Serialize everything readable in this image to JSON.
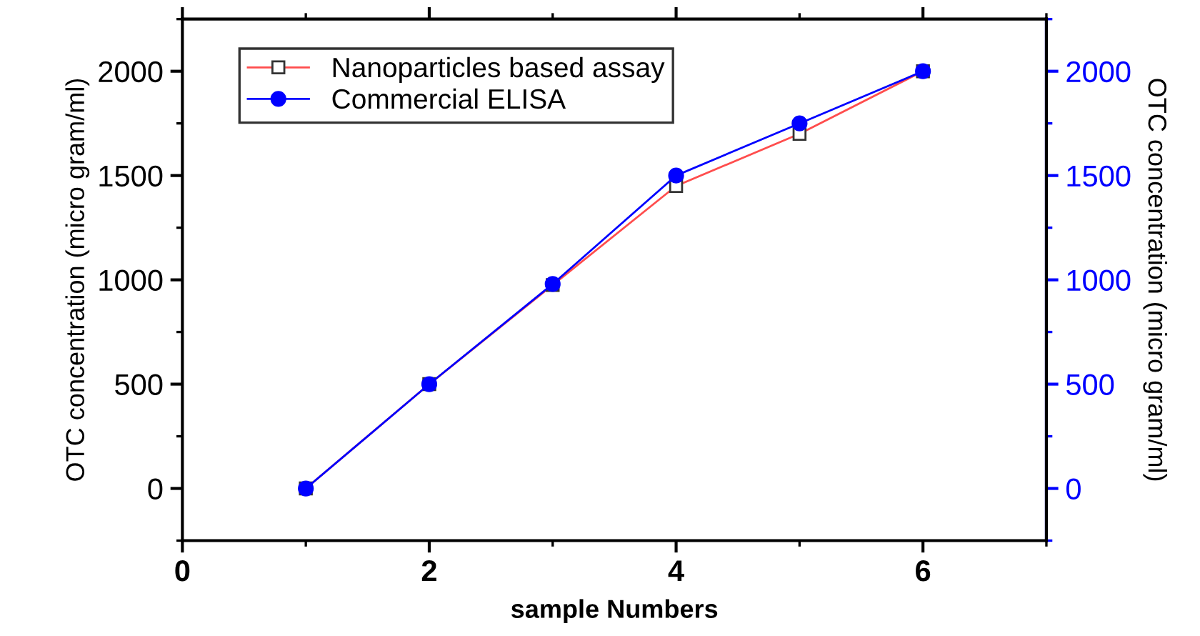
{
  "chart_data": {
    "type": "line",
    "xlabel": "sample Numbers",
    "ylabel": "OTC concentration (micro gram/ml)",
    "y2label": "OTC concentration (micro gram/ml)",
    "x": [
      1,
      2,
      3,
      4,
      5,
      6
    ],
    "series": [
      {
        "name": "Nanoparticles based assay",
        "color": "#ff4d4d",
        "marker": "square",
        "values": [
          0,
          500,
          975,
          1450,
          1700,
          2000
        ]
      },
      {
        "name": "Commercial ELISA",
        "color": "#0000ff",
        "marker": "circle",
        "values": [
          0,
          500,
          980,
          1500,
          1750,
          2000
        ]
      }
    ],
    "xlim": [
      0,
      7
    ],
    "xticks": [
      0,
      2,
      4,
      6
    ],
    "ylim": [
      -250,
      2250
    ],
    "yticks": [
      0,
      500,
      1000,
      1500,
      2000
    ],
    "y2lim": [
      -250,
      2250
    ],
    "y2ticks": [
      0,
      500,
      1000,
      1500,
      2000
    ],
    "legend": "top left",
    "grid": false,
    "line_style": "solid"
  }
}
